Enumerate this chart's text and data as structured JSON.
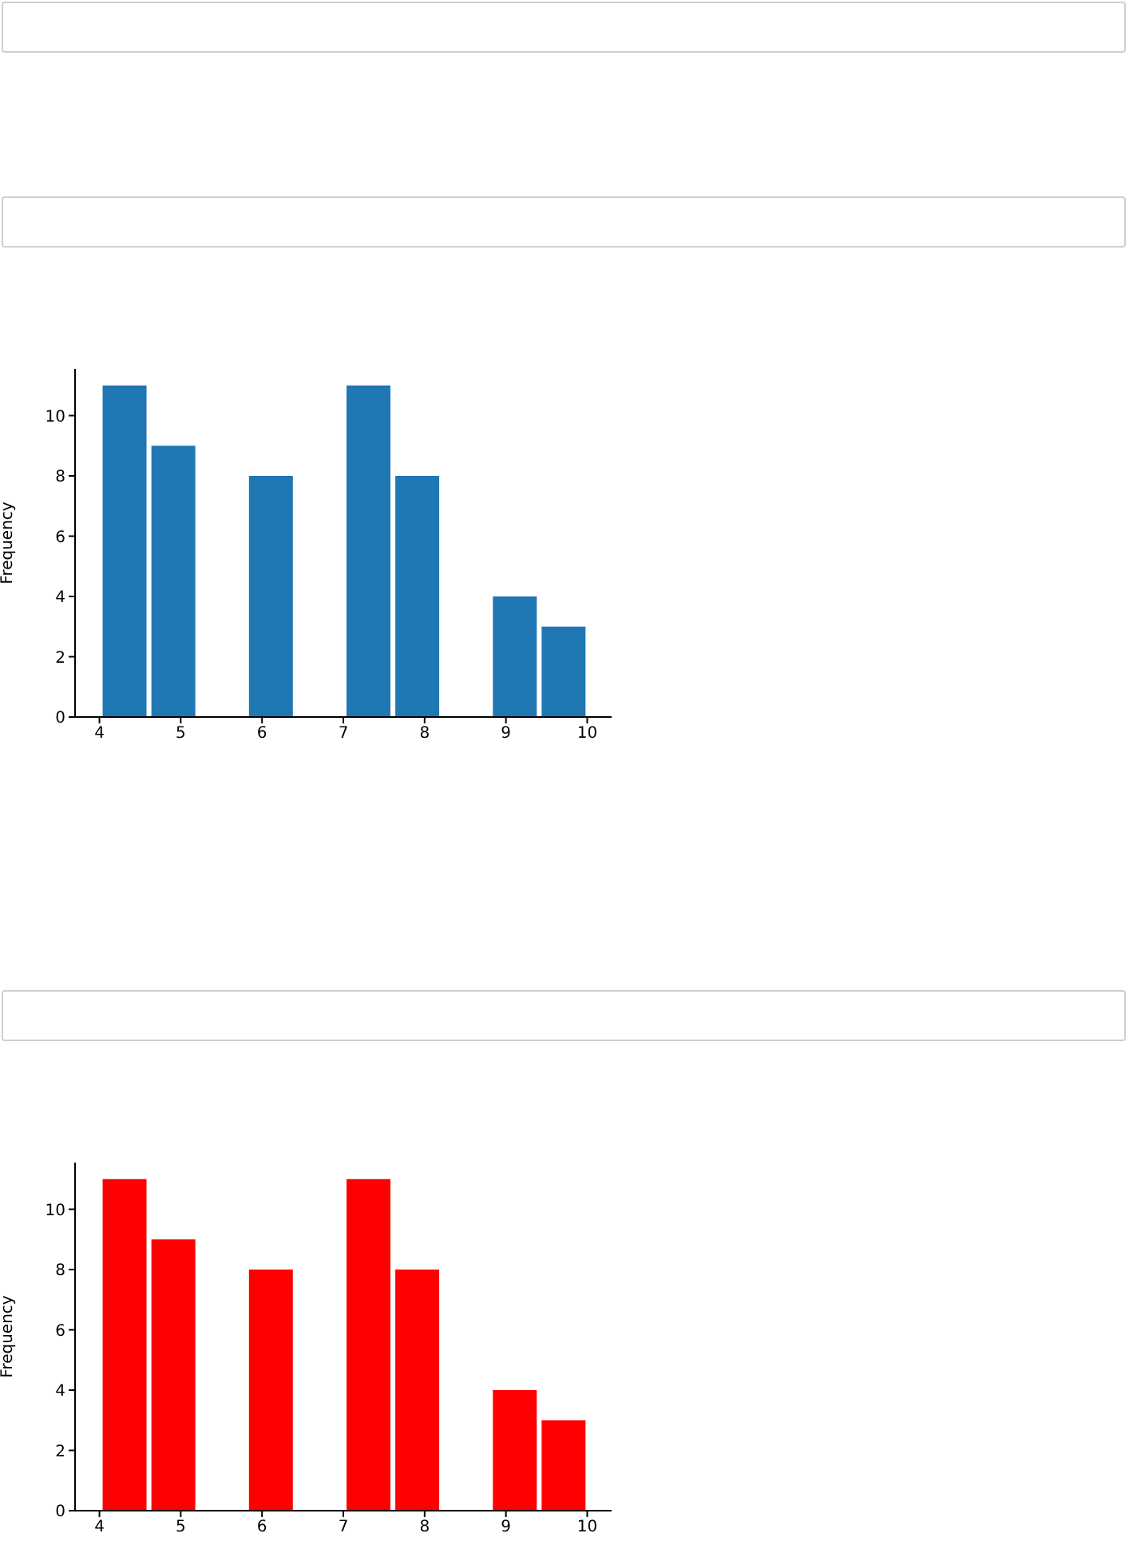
{
  "chart_data": [
    {
      "type": "histogram",
      "ylabel": "Frequency",
      "bins": [
        4,
        4.6,
        5.2,
        5.8,
        6.4,
        7,
        7.6,
        8.2,
        8.8,
        9.4,
        10
      ],
      "values": [
        11,
        9,
        0,
        8,
        0,
        11,
        8,
        0,
        4,
        3
      ],
      "color": "#1f77b4",
      "xlim": [
        3.7,
        10.3
      ],
      "xticks": [
        4,
        5,
        6,
        7,
        8,
        9,
        10
      ],
      "ylim": [
        0,
        11.55
      ],
      "yticks": [
        0,
        2,
        4,
        6,
        8,
        10
      ]
    },
    {
      "type": "histogram",
      "ylabel": "Frequency",
      "bins": [
        4,
        4.6,
        5.2,
        5.8,
        6.4,
        7,
        7.6,
        8.2,
        8.8,
        9.4,
        10
      ],
      "values": [
        11,
        9,
        0,
        8,
        0,
        11,
        8,
        0,
        4,
        3
      ],
      "color": "#ff0000",
      "xlim": [
        3.7,
        10.3
      ],
      "xticks": [
        4,
        5,
        6,
        7,
        8,
        9,
        10
      ],
      "ylim": [
        0,
        11.55
      ],
      "yticks": [
        0,
        2,
        4,
        6,
        8,
        10
      ]
    }
  ]
}
